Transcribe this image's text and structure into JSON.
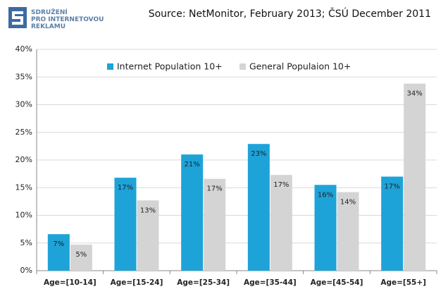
{
  "logo_text": [
    "SDRUŽENÍ",
    "PRO INTERNETOVOU",
    "REKLAMU"
  ],
  "chart_data": {
    "type": "bar",
    "title": "Source: NetMonitor, February 2013; ČSÚ December 2011",
    "categories": [
      "Age=[10-14]",
      "Age=[15-24]",
      "Age=[25-34]",
      "Age=[35-44]",
      "Age=[45-54]",
      "Age=[55+]"
    ],
    "series": [
      {
        "name": "Internet Population 10+",
        "color": "#1ea3d8",
        "values": [
          6.6,
          16.8,
          21,
          22.9,
          15.5,
          17
        ],
        "value_labels": [
          "7%",
          "17%",
          "21%",
          "23%",
          "16%",
          "17%"
        ]
      },
      {
        "name": "General Populaion 10+",
        "color": "#d4d4d4",
        "values": [
          4.7,
          12.7,
          16.6,
          17.3,
          14.2,
          33.8
        ],
        "value_labels": [
          "5%",
          "13%",
          "17%",
          "17%",
          "14%",
          "34%"
        ]
      }
    ],
    "ylim": [
      0,
      40
    ],
    "yticks": [
      {
        "value": 0,
        "label": "0%"
      },
      {
        "value": 5,
        "label": "5%"
      },
      {
        "value": 10,
        "label": "10%"
      },
      {
        "value": 15,
        "label": "15%"
      },
      {
        "value": 20,
        "label": "20%"
      },
      {
        "value": 25,
        "label": "25%"
      },
      {
        "value": 30,
        "label": "30%"
      },
      {
        "value": 35,
        "label": "35%"
      },
      {
        "value": 40,
        "label": "40%"
      }
    ],
    "grid": true,
    "legend": "top"
  }
}
